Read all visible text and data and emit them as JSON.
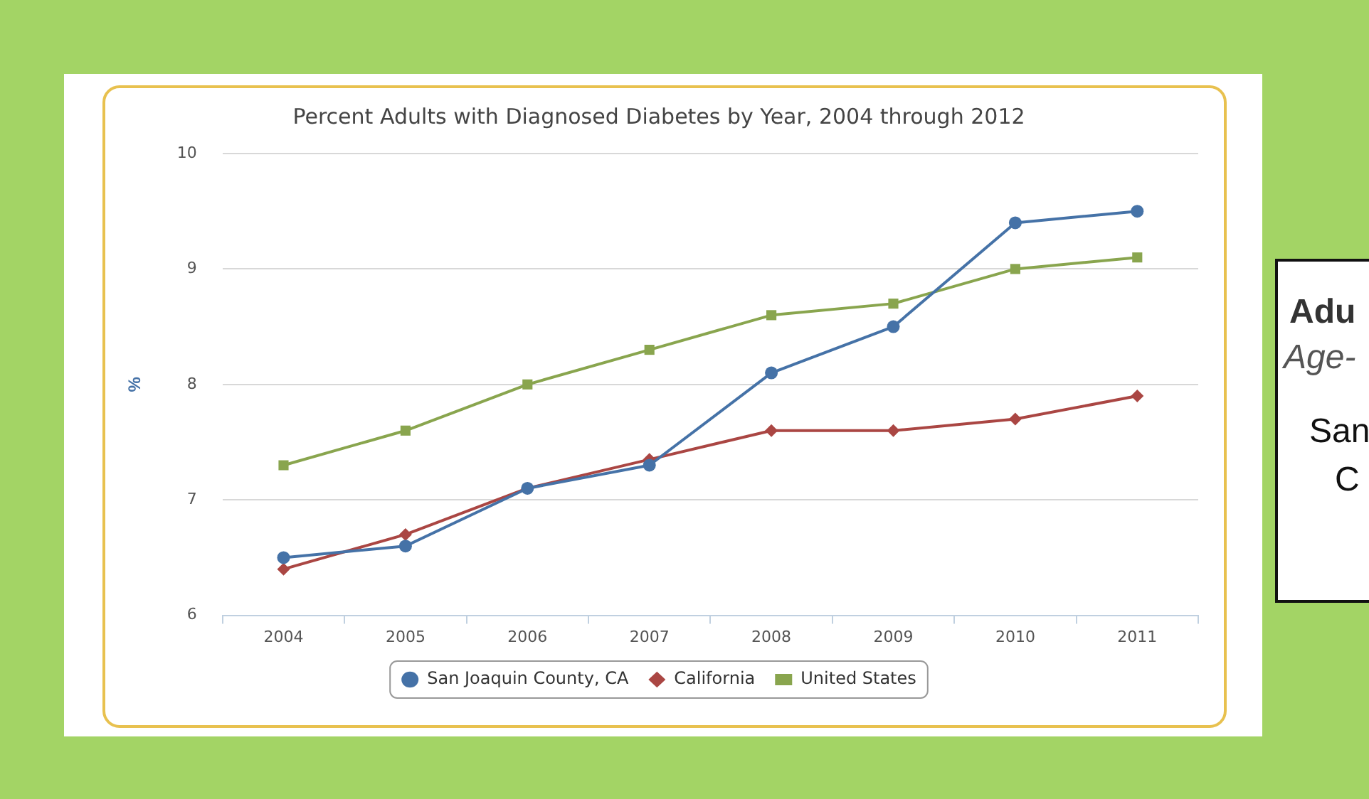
{
  "chart_data": {
    "type": "line",
    "title": "Percent Adults with Diagnosed Diabetes by Year, 2004 through 2012",
    "ylabel": "%",
    "categories": [
      "2004",
      "2005",
      "2006",
      "2007",
      "2008",
      "2009",
      "2010",
      "2011"
    ],
    "series": [
      {
        "name": "San Joaquin County, CA",
        "color": "#4572a7",
        "marker": "circle",
        "values": [
          6.5,
          6.6,
          7.1,
          7.3,
          8.1,
          8.5,
          9.4,
          9.5
        ]
      },
      {
        "name": "California",
        "color": "#aa4643",
        "marker": "diamond",
        "values": [
          6.4,
          6.7,
          7.1,
          7.35,
          7.6,
          7.6,
          7.7,
          7.9
        ]
      },
      {
        "name": "United States",
        "color": "#89a54e",
        "marker": "square",
        "values": [
          7.3,
          7.6,
          8.0,
          8.3,
          8.6,
          8.7,
          9.0,
          9.1
        ]
      }
    ],
    "ylim": [
      6,
      10
    ],
    "yticks": [
      6,
      7,
      8,
      9,
      10
    ],
    "grid": "y",
    "legend": "bottom",
    "line_style": "solid",
    "annotations": [
      "Adu",
      "Age-",
      "San",
      "C"
    ]
  }
}
